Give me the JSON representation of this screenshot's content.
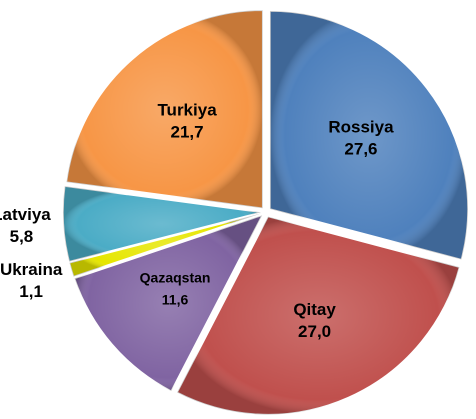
{
  "chart_data": {
    "type": "pie",
    "categories": [
      "Rossiya",
      "Qitay",
      "Qazaqstan",
      "Ukraina",
      "Latviya",
      "Turkiya"
    ],
    "values": [
      27.6,
      27.0,
      11.6,
      1.1,
      5.8,
      21.7
    ],
    "value_labels": [
      "27,6",
      "27,0",
      "11,6",
      "1,1",
      "5,8",
      "21,7"
    ],
    "colors": [
      "#4f81bd",
      "#c0504d",
      "#8064a2",
      "#e6e600",
      "#4bacc6",
      "#f79646"
    ]
  }
}
